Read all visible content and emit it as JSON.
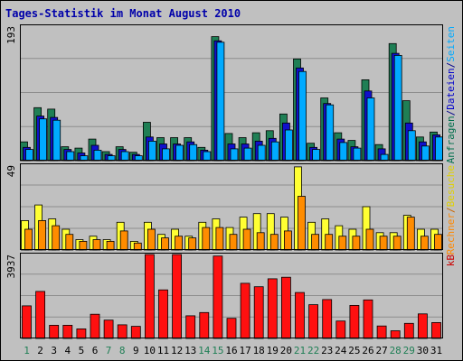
{
  "chart_data": {
    "type": "bar",
    "title": "Tages-Statistik im Monat August 2010",
    "categories": [
      "1",
      "2",
      "3",
      "4",
      "5",
      "6",
      "7",
      "8",
      "9",
      "10",
      "11",
      "12",
      "13",
      "14",
      "15",
      "16",
      "17",
      "18",
      "19",
      "20",
      "21",
      "22",
      "23",
      "24",
      "25",
      "26",
      "27",
      "28",
      "29",
      "30",
      "31"
    ],
    "weekend_days": [
      "1",
      "7",
      "8",
      "14",
      "15",
      "21",
      "22",
      "28",
      "29"
    ],
    "panels": [
      {
        "max_label": "193",
        "ylim": [
          0,
          193
        ],
        "right_labels": [
          {
            "text": "Anfragen",
            "color": "#006f4c"
          },
          {
            "text": "/",
            "color": "#00008b"
          },
          {
            "text": "Dateien",
            "color": "#0000cc"
          },
          {
            "text": "/",
            "color": "#00008b"
          },
          {
            "text": "Seiten",
            "color": "#00aaff"
          }
        ],
        "series": [
          {
            "name": "Anfragen",
            "color": "#1f7f55",
            "values": [
              27,
              76,
              74,
              20,
              18,
              31,
              13,
              20,
              12,
              55,
              33,
              33,
              33,
              19,
              178,
              39,
              33,
              40,
              43,
              67,
              146,
              25,
              90,
              40,
              29,
              116,
              23,
              168,
              86,
              34,
              41
            ]
          },
          {
            "name": "Dateien",
            "color": "#1010cc",
            "values": [
              19,
              64,
              62,
              16,
              11,
              22,
              9,
              16,
              9,
              34,
              24,
              24,
              27,
              15,
              172,
              24,
              24,
              28,
              32,
              54,
              133,
              19,
              82,
              31,
              20,
              100,
              17,
              154,
              54,
              27,
              37
            ]
          },
          {
            "name": "Seiten",
            "color": "#00aaff",
            "values": [
              16,
              60,
              58,
              13,
              7,
              15,
              7,
              13,
              7,
              28,
              17,
              22,
              23,
              13,
              170,
              17,
              18,
              22,
              27,
              44,
              128,
              16,
              80,
              26,
              18,
              90,
              9,
              151,
              43,
              21,
              34
            ]
          }
        ]
      },
      {
        "max_label": "49",
        "ylim": [
          0,
          49
        ],
        "right_labels": [
          {
            "text": "Rechner",
            "color": "#ff8800"
          },
          {
            "text": "/",
            "color": "#cc6600"
          },
          {
            "text": "Besuche",
            "color": "#e0d000"
          }
        ],
        "series": [
          {
            "name": "Besuche",
            "color": "#ffff33",
            "values": [
              17,
              26,
              18,
              12,
              6,
              8,
              6,
              16,
              5,
              16,
              9,
              12,
              8,
              16,
              18,
              13,
              19,
              21,
              21,
              19,
              48,
              16,
              18,
              14,
              12,
              25,
              10,
              10,
              20,
              12,
              12
            ]
          },
          {
            "name": "Rechner",
            "color": "#ff8c00",
            "values": [
              12,
              17,
              14,
              9,
              5,
              6,
              5,
              11,
              4,
              12,
              7,
              8,
              7,
              13,
              13,
              9,
              12,
              10,
              9,
              11,
              31,
              9,
              9,
              8,
              8,
              12,
              8,
              8,
              19,
              8,
              9
            ]
          }
        ]
      },
      {
        "max_label": "3937",
        "ylim": [
          0,
          3937
        ],
        "right_labels": [
          {
            "text": "kB",
            "color": "#cc0000"
          }
        ],
        "series": [
          {
            "name": "kB",
            "color": "#ff1010",
            "values": [
              1528,
              2206,
              620,
              620,
              450,
              1134,
              859,
              638,
              567,
              3937,
              2278,
              3937,
              1063,
              1217,
              3866,
              945,
              2586,
              2427,
              2799,
              2870,
              2153,
              1583,
              1825,
              817,
              1548,
              1808,
              585,
              361,
              709,
              1151,
              745
            ]
          }
        ]
      }
    ]
  }
}
